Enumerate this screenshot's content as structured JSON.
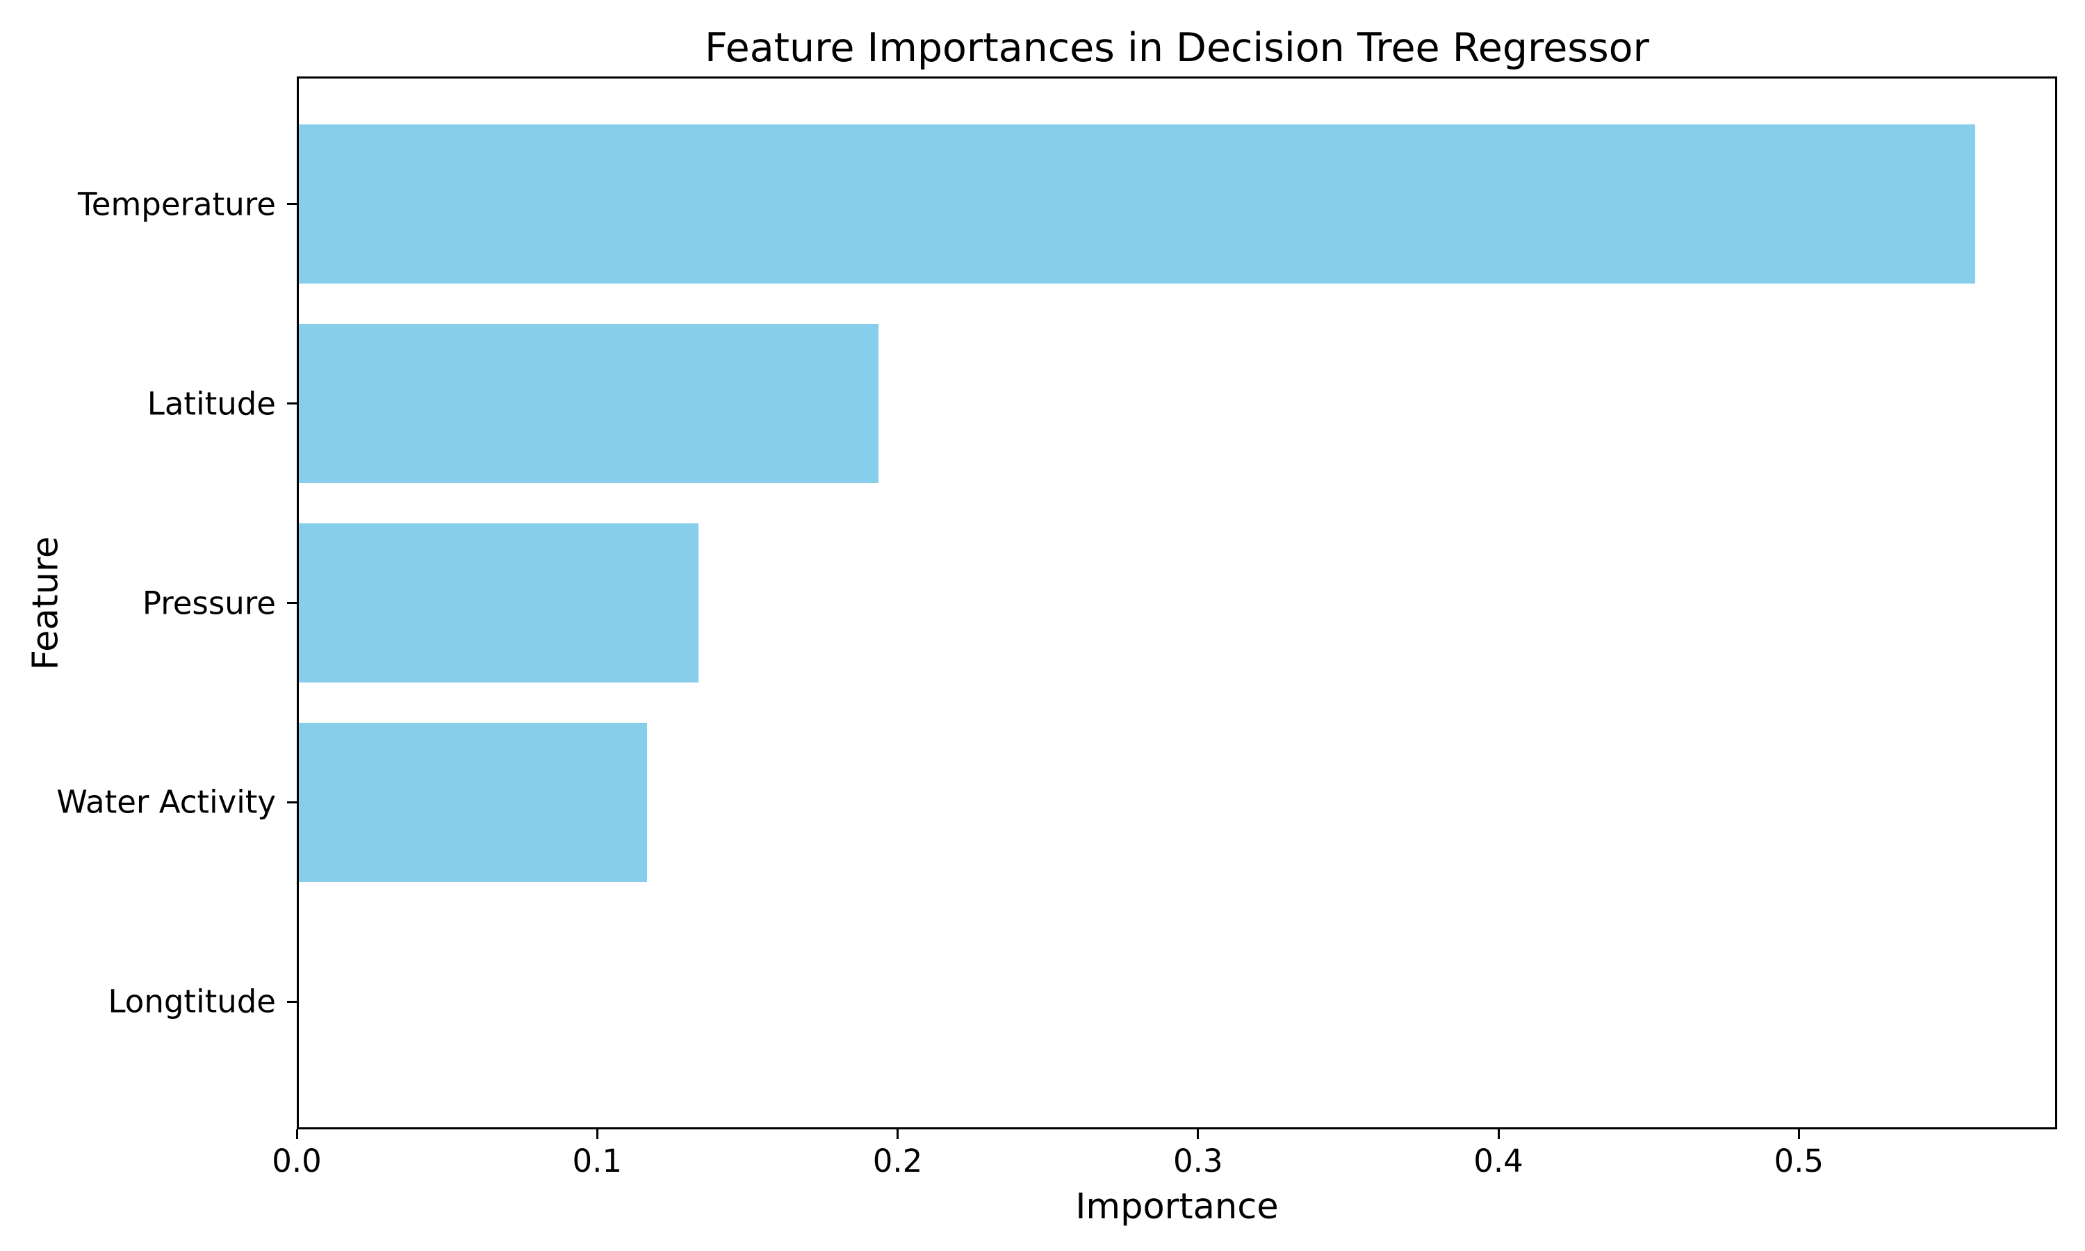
{
  "figure": {
    "background_color": "#ffffff",
    "text_color": "#000000",
    "axis_color": "#000000"
  },
  "chart_data": {
    "type": "bar",
    "orientation": "horizontal",
    "title": "Feature Importances in Decision Tree Regressor",
    "xlabel": "Importance",
    "ylabel": "Feature",
    "categories": [
      "Temperature",
      "Latitude",
      "Pressure",
      "Water Activity",
      "Longtitude"
    ],
    "values": [
      0.558,
      0.193,
      0.133,
      0.116,
      0.0
    ],
    "x_tick_labels": [
      "0.0",
      "0.1",
      "0.2",
      "0.3",
      "0.4",
      "0.5"
    ],
    "x_tick_values": [
      0.0,
      0.1,
      0.2,
      0.3,
      0.4,
      0.5
    ],
    "xlim": [
      0.0,
      0.586
    ],
    "bar_color": "#87CEEB",
    "bar_height_fraction": 0.8,
    "grid": false,
    "legend": false
  }
}
